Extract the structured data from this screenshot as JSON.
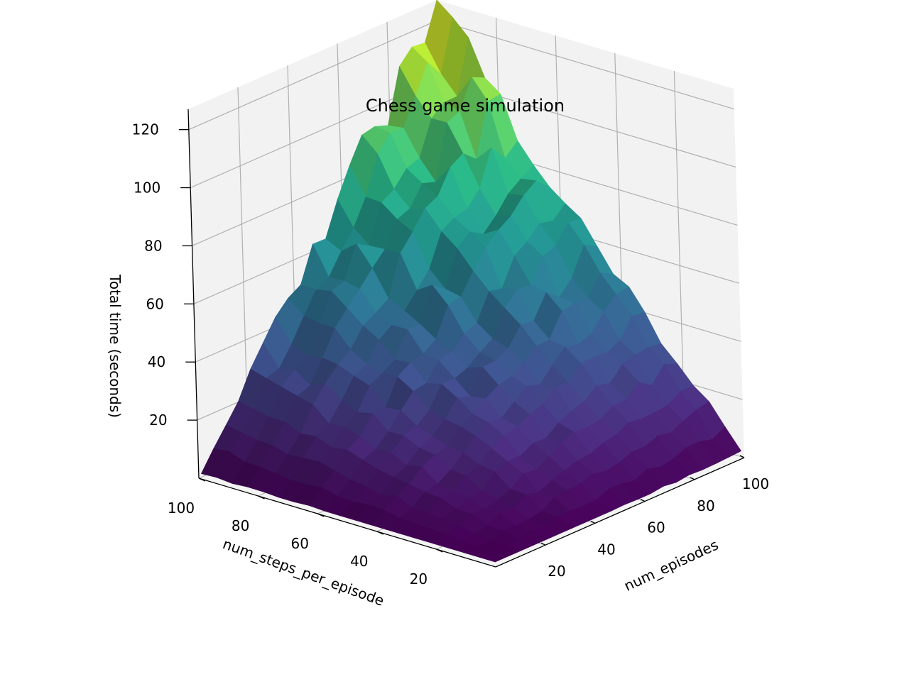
{
  "chart_data": {
    "type": "surface",
    "title": "Chess game simulation",
    "xlabel": "num_episodes",
    "ylabel": "num_steps_per_episode",
    "zlabel": "Total time (seconds)",
    "xlim": [
      1,
      100
    ],
    "ylim": [
      1,
      100
    ],
    "zlim": [
      1,
      127
    ],
    "x_ticks": [
      "20",
      "40",
      "60",
      "80",
      "100"
    ],
    "y_ticks": [
      "20",
      "40",
      "60",
      "80",
      "100"
    ],
    "z_ticks": [
      "20",
      "40",
      "60",
      "80",
      "100",
      "120"
    ],
    "grid": true,
    "colormap": "viridis",
    "grid_points": 20,
    "model": "total_time = num_episodes × num_steps_per_episode / 80 plus noise",
    "grid_x": [
      1,
      6.2,
      11.4,
      16.6,
      21.8,
      27.1,
      32.3,
      37.5,
      42.7,
      47.9,
      53.1,
      58.3,
      63.5,
      68.7,
      73.9,
      79.2,
      84.4,
      89.6,
      94.8,
      100
    ],
    "grid_y": [
      1,
      6.2,
      11.4,
      16.6,
      21.8,
      27.1,
      32.3,
      37.5,
      42.7,
      47.9,
      53.1,
      58.3,
      63.5,
      68.7,
      73.9,
      79.2,
      84.4,
      89.6,
      94.8,
      100
    ],
    "peak": {
      "num_episodes": 100,
      "num_steps_per_episode": 100,
      "total_time": 127
    },
    "min": {
      "num_episodes": 1,
      "num_steps_per_episode": 1,
      "total_time": 1
    }
  },
  "colors": {
    "pane": "#f2f2f2",
    "grid": "#b0b0b0",
    "axis": "#000000",
    "colormap_stops": [
      "#440154",
      "#472d7b",
      "#3b528b",
      "#2c728e",
      "#21918c",
      "#28ae80",
      "#5ec962",
      "#addc30",
      "#fde725"
    ]
  }
}
